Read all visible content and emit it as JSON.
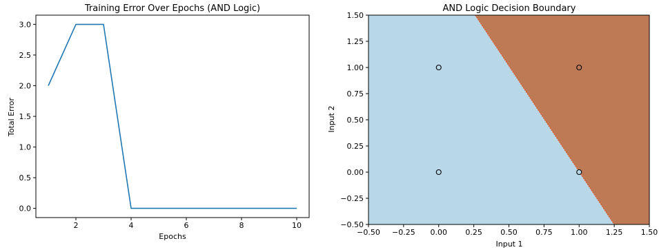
{
  "chart_data": [
    {
      "type": "line",
      "title": "Training Error Over Epochs (AND Logic)",
      "xlabel": "Epochs",
      "ylabel": "Total Error",
      "x": [
        1,
        2,
        3,
        4,
        5,
        6,
        7,
        8,
        9,
        10
      ],
      "series": [
        {
          "values": [
            2,
            3,
            3,
            0,
            0,
            0,
            0,
            0,
            0,
            0
          ]
        }
      ],
      "xlim": [
        0.55,
        10.45
      ],
      "ylim": [
        -0.15,
        3.15
      ],
      "xticks": [
        2,
        4,
        6,
        8,
        10
      ],
      "xtick_labels": [
        "2",
        "4",
        "6",
        "8",
        "10"
      ],
      "yticks": [
        0.0,
        0.5,
        1.0,
        1.5,
        2.0,
        2.5,
        3.0
      ],
      "ytick_labels": [
        "0.0",
        "0.5",
        "1.0",
        "1.5",
        "2.0",
        "2.5",
        "3.0"
      ],
      "grid": false,
      "line_color": "#1f77b4"
    },
    {
      "type": "scatter",
      "title": "AND Logic Decision Boundary",
      "xlabel": "Input 1",
      "ylabel": "Input 2",
      "points": [
        {
          "x": 0,
          "y": 0,
          "class": 0
        },
        {
          "x": 0,
          "y": 1,
          "class": 0
        },
        {
          "x": 1,
          "y": 0,
          "class": 0
        },
        {
          "x": 1,
          "y": 1,
          "class": 1
        }
      ],
      "decision_boundary": [
        {
          "x": 0.26,
          "y": 1.5
        },
        {
          "x": 1.25,
          "y": -0.5
        }
      ],
      "region_colors": {
        "class_0": "#b8d8e8",
        "class_1": "#be7a55",
        "boundary": "#e8501e"
      },
      "xlim": [
        -0.5,
        1.5
      ],
      "ylim": [
        -0.5,
        1.5
      ],
      "xticks": [
        -0.5,
        -0.25,
        0.0,
        0.25,
        0.5,
        0.75,
        1.0,
        1.25,
        1.5
      ],
      "xtick_labels": [
        "−0.50",
        "−0.25",
        "0.00",
        "0.25",
        "0.50",
        "0.75",
        "1.00",
        "1.25",
        "1.50"
      ],
      "yticks": [
        -0.5,
        -0.25,
        0.0,
        0.25,
        0.5,
        0.75,
        1.0,
        1.25,
        1.5
      ],
      "ytick_labels": [
        "−0.50",
        "−0.25",
        "0.00",
        "0.25",
        "0.50",
        "0.75",
        "1.00",
        "1.25",
        "1.50"
      ],
      "grid": false
    }
  ]
}
